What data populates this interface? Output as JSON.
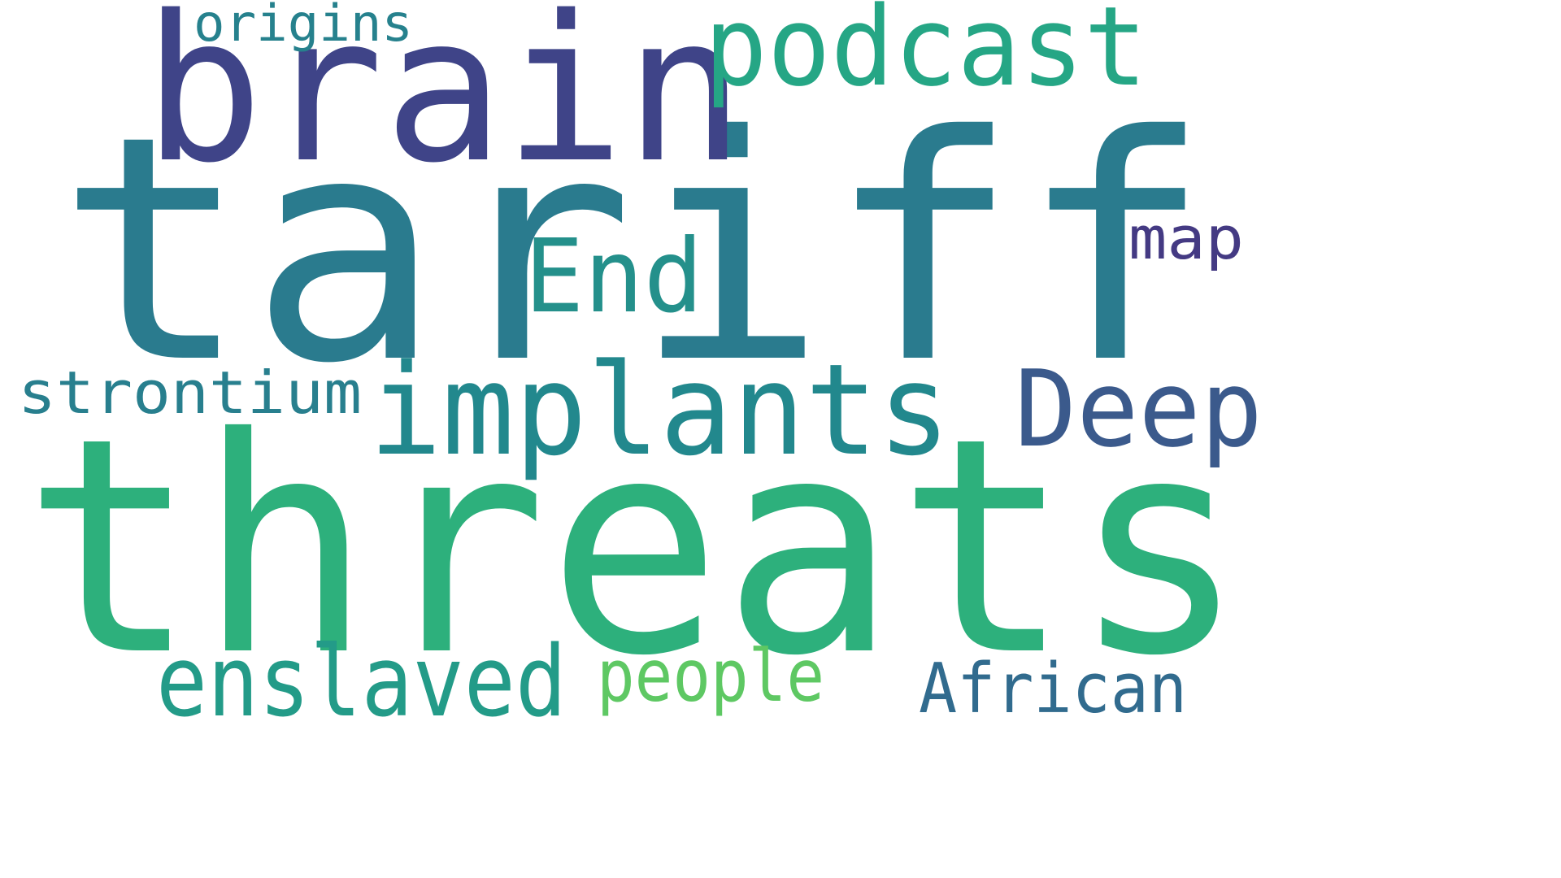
{
  "words": [
    {
      "key": "tariff",
      "text": "tariff",
      "color": "#2a7b8e"
    },
    {
      "key": "threats",
      "text": "threats",
      "color": "#2db07c"
    },
    {
      "key": "brain",
      "text": "brain",
      "color": "#3f4488"
    },
    {
      "key": "implants",
      "text": "implants",
      "color": "#22888d"
    },
    {
      "key": "podcast",
      "text": "podcast",
      "color": "#25a685"
    },
    {
      "key": "deep",
      "text": "Deep",
      "color": "#3b5a8c"
    },
    {
      "key": "end",
      "text": "End",
      "color": "#24908b"
    },
    {
      "key": "enslaved",
      "text": "enslaved",
      "color": "#239b88"
    },
    {
      "key": "people",
      "text": "people",
      "color": "#5ec863"
    },
    {
      "key": "african",
      "text": "African",
      "color": "#316b8e"
    },
    {
      "key": "strontium",
      "text": "strontium",
      "color": "#287f8e"
    },
    {
      "key": "origins",
      "text": "origins",
      "color": "#26818d"
    },
    {
      "key": "map",
      "text": "map",
      "color": "#443a83"
    }
  ]
}
